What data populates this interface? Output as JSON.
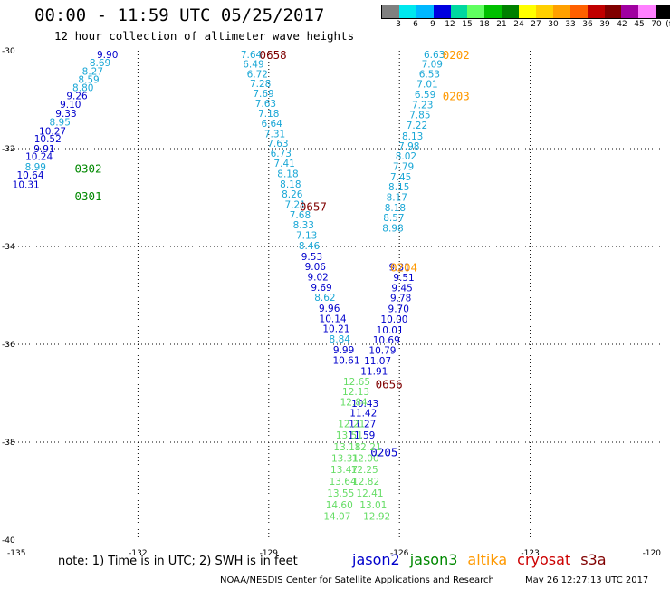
{
  "header": {
    "title": "00:00 - 11:59 UTC 05/25/2017",
    "subtitle": "12 hour collection of altimeter wave heights"
  },
  "legend": {
    "colors": [
      "#808080",
      "#00e8ee",
      "#00b8ff",
      "#0000e0",
      "#00d8a0",
      "#60ff60",
      "#00c000",
      "#008000",
      "#ffff00",
      "#ffd000",
      "#ffa000",
      "#ff6000",
      "#c00000",
      "#800000",
      "#a000a0",
      "#ff80ff",
      "#000000"
    ],
    "labels": [
      "3",
      "6",
      "9",
      "12",
      "15",
      "18",
      "21",
      "24",
      "27",
      "30",
      "33",
      "36",
      "39",
      "42",
      "45",
      "70",
      "(ft)"
    ]
  },
  "note": "note: 1) Time is in UTC; 2) SWH is in feet",
  "satellites": [
    {
      "name": "jason2",
      "color": "#0000cc"
    },
    {
      "name": "jason3",
      "color": "#008800"
    },
    {
      "name": "altika",
      "color": "#ff9900"
    },
    {
      "name": "cryosat",
      "color": "#cc0000"
    },
    {
      "name": "s3a",
      "color": "#800000"
    }
  ],
  "footer_left": "NOAA/NESDIS Center for Satellite Applications and Research",
  "footer_right": "May 26 12:27:13 UTC 2017",
  "chart_data": {
    "type": "scatter",
    "xlim": [
      -135,
      -120
    ],
    "ylim": [
      -40,
      -30
    ],
    "xticks": [
      -135,
      -132,
      -129,
      -126,
      -123,
      -120
    ],
    "yticks": [
      -30,
      -32,
      -34,
      -36,
      -38,
      -40
    ],
    "grid": true,
    "series": [
      {
        "name": "jason3",
        "color_key": "jason3",
        "time_labels": [
          {
            "label": "0302",
            "x": -133.14,
            "y": -32.4
          },
          {
            "label": "0301",
            "x": -133.14,
            "y": -32.96
          }
        ],
        "points": [
          {
            "x": -132.7,
            "y": -30.07,
            "v": "9.90"
          },
          {
            "x": -132.87,
            "y": -30.24,
            "v": "8.69"
          },
          {
            "x": -133.04,
            "y": -30.42,
            "v": "8.27"
          },
          {
            "x": -133.13,
            "y": -30.58,
            "v": "8.59"
          },
          {
            "x": -133.26,
            "y": -30.75,
            "v": "8.80"
          },
          {
            "x": -133.4,
            "y": -30.92,
            "v": "9.26"
          },
          {
            "x": -133.55,
            "y": -31.09,
            "v": "9.10"
          },
          {
            "x": -133.65,
            "y": -31.28,
            "v": "9.33"
          },
          {
            "x": -133.79,
            "y": -31.45,
            "v": "8.95"
          },
          {
            "x": -133.96,
            "y": -31.64,
            "v": "10.27"
          },
          {
            "x": -134.07,
            "y": -31.8,
            "v": "10.52"
          },
          {
            "x": -134.15,
            "y": -32.0,
            "v": "9.91"
          },
          {
            "x": -134.27,
            "y": -32.16,
            "v": "10.24"
          },
          {
            "x": -134.35,
            "y": -32.37,
            "v": "8.99"
          },
          {
            "x": -134.47,
            "y": -32.54,
            "v": "10.64"
          },
          {
            "x": -134.57,
            "y": -32.73,
            "v": "10.31"
          }
        ]
      },
      {
        "name": "s3a",
        "color_key": "s3a",
        "time_labels": [
          {
            "label": "0658",
            "x": -128.9,
            "y": -30.07
          },
          {
            "label": "0657",
            "x": -127.98,
            "y": -33.18
          },
          {
            "label": "0656",
            "x": -126.24,
            "y": -36.81
          }
        ],
        "points": [
          {
            "x": -129.4,
            "y": -30.07,
            "v": "7.64"
          },
          {
            "x": -129.35,
            "y": -30.27,
            "v": "6.49"
          },
          {
            "x": -129.26,
            "y": -30.47,
            "v": "6.72"
          },
          {
            "x": -129.19,
            "y": -30.67,
            "v": "7.28"
          },
          {
            "x": -129.12,
            "y": -30.87,
            "v": "7.69"
          },
          {
            "x": -129.07,
            "y": -31.07,
            "v": "7.63"
          },
          {
            "x": -129.0,
            "y": -31.28,
            "v": "7.18"
          },
          {
            "x": -128.93,
            "y": -31.48,
            "v": "6.64"
          },
          {
            "x": -128.86,
            "y": -31.69,
            "v": "7.31"
          },
          {
            "x": -128.79,
            "y": -31.89,
            "v": "7.63"
          },
          {
            "x": -128.72,
            "y": -32.09,
            "v": "6.73"
          },
          {
            "x": -128.64,
            "y": -32.3,
            "v": "7.41"
          },
          {
            "x": -128.56,
            "y": -32.51,
            "v": "8.18"
          },
          {
            "x": -128.5,
            "y": -32.72,
            "v": "8.18"
          },
          {
            "x": -128.46,
            "y": -32.93,
            "v": "8.26"
          },
          {
            "x": -128.39,
            "y": -33.14,
            "v": "7.21"
          },
          {
            "x": -128.28,
            "y": -33.35,
            "v": "7.68"
          },
          {
            "x": -128.2,
            "y": -33.56,
            "v": "8.33"
          },
          {
            "x": -128.13,
            "y": -33.77,
            "v": "7.13"
          },
          {
            "x": -128.07,
            "y": -33.98,
            "v": "8.46"
          },
          {
            "x": -128.01,
            "y": -34.2,
            "v": "9.53"
          },
          {
            "x": -127.93,
            "y": -34.41,
            "v": "9.06"
          },
          {
            "x": -127.87,
            "y": -34.62,
            "v": "9.02"
          },
          {
            "x": -127.79,
            "y": -34.83,
            "v": "9.69"
          },
          {
            "x": -127.71,
            "y": -35.04,
            "v": "8.62"
          },
          {
            "x": -127.61,
            "y": -35.26,
            "v": "9.96"
          },
          {
            "x": -127.53,
            "y": -35.47,
            "v": "10.14"
          },
          {
            "x": -127.45,
            "y": -35.68,
            "v": "10.21"
          },
          {
            "x": -127.37,
            "y": -35.89,
            "v": "8.84"
          },
          {
            "x": -127.28,
            "y": -36.11,
            "v": "9.99"
          },
          {
            "x": -127.22,
            "y": -36.32,
            "v": "10.61"
          }
        ]
      },
      {
        "name": "jason2",
        "color_key": "jason2",
        "time_labels": [
          {
            "label": "0205",
            "x": -126.35,
            "y": -38.19
          }
        ],
        "points": [
          {
            "x": -126.0,
            "y": -34.42,
            "v": "9.31"
          },
          {
            "x": -125.9,
            "y": -34.63,
            "v": "9.51"
          },
          {
            "x": -125.94,
            "y": -34.84,
            "v": "9.45"
          },
          {
            "x": -125.97,
            "y": -35.05,
            "v": "9.78"
          },
          {
            "x": -126.02,
            "y": -35.27,
            "v": "9.70"
          },
          {
            "x": -126.12,
            "y": -35.48,
            "v": "10.00"
          },
          {
            "x": -126.22,
            "y": -35.7,
            "v": "10.01"
          },
          {
            "x": -126.3,
            "y": -35.91,
            "v": "10.69"
          },
          {
            "x": -126.39,
            "y": -36.12,
            "v": "10.79"
          },
          {
            "x": -126.5,
            "y": -36.33,
            "v": "11.07"
          },
          {
            "x": -126.58,
            "y": -36.55,
            "v": "11.91"
          },
          {
            "x": -126.79,
            "y": -37.2,
            "v": "10.43"
          },
          {
            "x": -126.83,
            "y": -37.4,
            "v": "11.42"
          },
          {
            "x": -126.85,
            "y": -37.62,
            "v": "11.27"
          },
          {
            "x": -126.87,
            "y": -37.85,
            "v": "11.59"
          },
          {
            "x": -126.78,
            "y": -38.32,
            "v": "12.00"
          }
        ]
      },
      {
        "name": "altika",
        "color_key": "altika",
        "time_labels": [
          {
            "label": "0202",
            "x": -124.7,
            "y": -30.07
          },
          {
            "label": "0203",
            "x": -124.7,
            "y": -30.92
          },
          {
            "label": "0204",
            "x": -125.9,
            "y": -34.42
          }
        ],
        "points": [
          {
            "x": -125.2,
            "y": -30.07,
            "v": "6.63"
          },
          {
            "x": -125.25,
            "y": -30.27,
            "v": "7.09"
          },
          {
            "x": -125.31,
            "y": -30.47,
            "v": "6.53"
          },
          {
            "x": -125.36,
            "y": -30.68,
            "v": "7.01"
          },
          {
            "x": -125.41,
            "y": -30.89,
            "v": "6.59"
          },
          {
            "x": -125.47,
            "y": -31.1,
            "v": "7.23"
          },
          {
            "x": -125.53,
            "y": -31.31,
            "v": "7.85"
          },
          {
            "x": -125.6,
            "y": -31.52,
            "v": "7.22"
          },
          {
            "x": -125.7,
            "y": -31.74,
            "v": "8.13"
          },
          {
            "x": -125.78,
            "y": -31.94,
            "v": "7.98"
          },
          {
            "x": -125.85,
            "y": -32.15,
            "v": "8.02"
          },
          {
            "x": -125.91,
            "y": -32.36,
            "v": "7.79"
          },
          {
            "x": -125.97,
            "y": -32.57,
            "v": "7.45"
          },
          {
            "x": -126.01,
            "y": -32.78,
            "v": "8.15"
          },
          {
            "x": -126.06,
            "y": -32.99,
            "v": "8.17"
          },
          {
            "x": -126.1,
            "y": -33.2,
            "v": "8.18"
          },
          {
            "x": -126.13,
            "y": -33.41,
            "v": "8.57"
          },
          {
            "x": -126.15,
            "y": -33.62,
            "v": "8.98"
          }
        ]
      },
      {
        "name": "altika-light",
        "color_key": "light",
        "time_labels": [],
        "points": [
          {
            "x": -126.98,
            "y": -36.76,
            "v": "12.65"
          },
          {
            "x": -127.0,
            "y": -36.96,
            "v": "12.13"
          },
          {
            "x": -127.05,
            "y": -37.18,
            "v": "12.84"
          },
          {
            "x": -127.1,
            "y": -37.62,
            "v": "12.21"
          },
          {
            "x": -127.15,
            "y": -37.85,
            "v": "13.51"
          },
          {
            "x": -127.2,
            "y": -38.09,
            "v": "13.18"
          },
          {
            "x": -126.72,
            "y": -38.09,
            "v": "12.21"
          },
          {
            "x": -127.25,
            "y": -38.32,
            "v": "13.31"
          },
          {
            "x": -127.27,
            "y": -38.56,
            "v": "13.47"
          },
          {
            "x": -126.8,
            "y": -38.56,
            "v": "12.25"
          },
          {
            "x": -127.3,
            "y": -38.8,
            "v": "13.64"
          },
          {
            "x": -126.77,
            "y": -38.8,
            "v": "12.82"
          },
          {
            "x": -127.35,
            "y": -39.04,
            "v": "13.55"
          },
          {
            "x": -126.68,
            "y": -39.04,
            "v": "12.41"
          },
          {
            "x": -127.38,
            "y": -39.28,
            "v": "14.60"
          },
          {
            "x": -126.6,
            "y": -39.28,
            "v": "13.01"
          },
          {
            "x": -127.43,
            "y": -39.51,
            "v": "14.07"
          },
          {
            "x": -126.52,
            "y": -39.51,
            "v": "12.92"
          }
        ]
      }
    ]
  }
}
